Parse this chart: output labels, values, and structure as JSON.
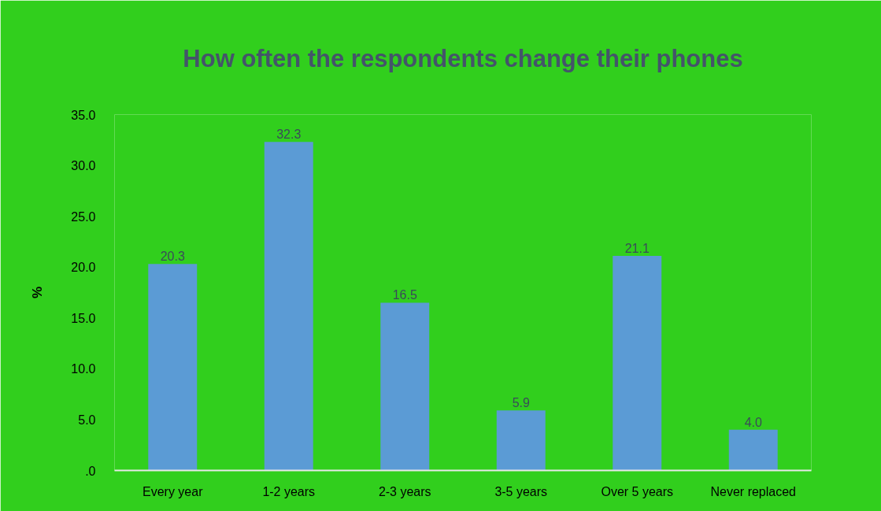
{
  "chart_data": {
    "type": "bar",
    "title": "How often the respondents change their phones",
    "ylabel": "%",
    "categories": [
      "Every year",
      "1-2 years",
      "2-3 years",
      "3-5 years",
      "Over 5 years",
      "Never replaced"
    ],
    "values": [
      20.3,
      32.3,
      16.5,
      5.9,
      21.1,
      4.0
    ],
    "value_labels": [
      "20.3",
      "32.3",
      "16.5",
      "5.9",
      "21.1",
      "4.0"
    ],
    "color": "#5b9bd5",
    "ylim": [
      0,
      35
    ],
    "yticks": [
      {
        "value": 0,
        "label": ".0"
      },
      {
        "value": 5,
        "label": "5.0"
      },
      {
        "value": 10,
        "label": "10.0"
      },
      {
        "value": 15,
        "label": "15.0"
      },
      {
        "value": 20,
        "label": "20.0"
      },
      {
        "value": 25,
        "label": "25.0"
      },
      {
        "value": 30,
        "label": "30.0"
      },
      {
        "value": 35,
        "label": "35.0"
      }
    ],
    "grid": false
  }
}
